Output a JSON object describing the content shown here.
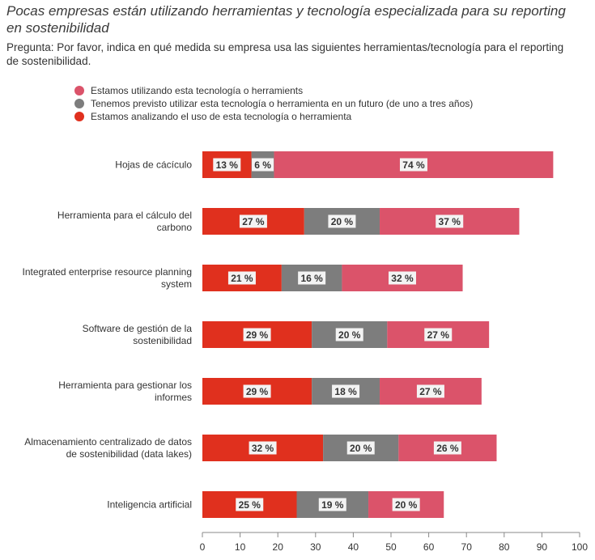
{
  "title": "Pocas empresas están utilizando herramientas y tecnología especializada para su reporting en sostenibilidad",
  "question": "Pregunta: Por favor, indica en qué medida su empresa usa las siguientes herramientas/tecnología para el reporting de sostenibilidad.",
  "chart_data": {
    "type": "bar",
    "orientation": "horizontal",
    "stacked": true,
    "categories": [
      "Hojas de cácículo",
      "Herramienta para el cálculo del carbono",
      "Integrated enterprise resource planning system",
      "Software de gestión de la sostenibilidad",
      "Herramienta para gestionar los informes",
      "Almacenamiento centralizado de datos de sostenibilidad (data lakes)",
      "Inteligencia artificial"
    ],
    "category_lines": [
      [
        "Hojas de cácículo"
      ],
      [
        "Herramienta para el cálculo del",
        "carbono"
      ],
      [
        "Integrated enterprise resource planning",
        "system"
      ],
      [
        "Software de gestión de la",
        "sostenibilidad"
      ],
      [
        "Herramienta para gestionar los",
        "informes"
      ],
      [
        "Almacenamiento centralizado de datos",
        "de sostenibilidad (data lakes)"
      ],
      [
        "Inteligencia artificial"
      ]
    ],
    "series": [
      {
        "name": "Estamos analizando el uso de esta tecnología o herramienta",
        "color": "#e0301e",
        "values": [
          13,
          27,
          21,
          29,
          29,
          32,
          25
        ]
      },
      {
        "name": "Tenemos previsto utilizar esta tecnología o herramienta en un futuro (de uno a tres años)",
        "color": "#7d7d7d",
        "values": [
          6,
          20,
          16,
          20,
          18,
          20,
          19
        ]
      },
      {
        "name": "Estamos utilizando esta tecnología o herramients",
        "color": "#db536a",
        "values": [
          74,
          37,
          32,
          27,
          27,
          26,
          20
        ]
      }
    ],
    "legend_order": [
      2,
      1,
      0
    ],
    "legend_position": "top-left",
    "xlim": [
      0,
      100
    ],
    "xticks": [
      0,
      10,
      20,
      30,
      40,
      50,
      60,
      70,
      80,
      90,
      100
    ],
    "value_suffix": " %",
    "grid": false
  }
}
